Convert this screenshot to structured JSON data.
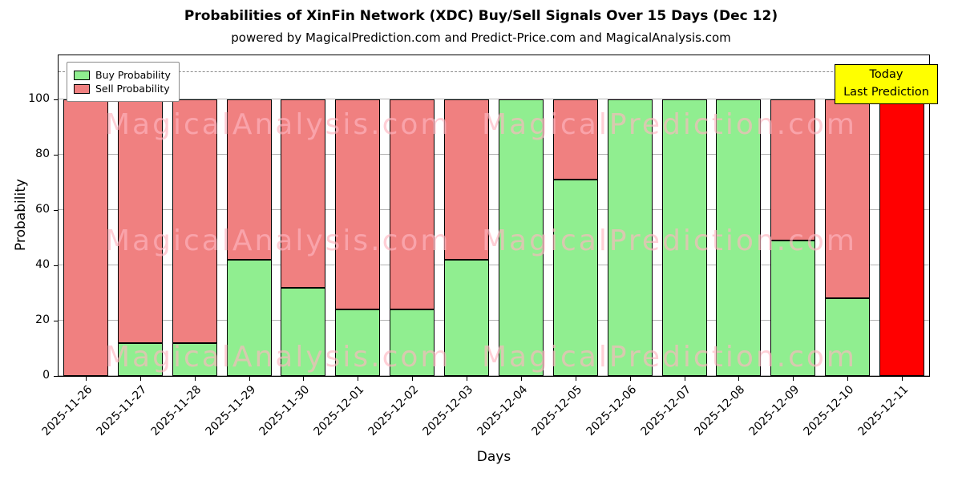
{
  "title": "Probabilities of XinFin Network (XDC) Buy/Sell Signals Over 15 Days (Dec 12)",
  "subtitle": "powered by MagicalPrediction.com and Predict-Price.com and MagicalAnalysis.com",
  "legend": {
    "buy_label": "Buy Probability",
    "sell_label": "Sell Probability"
  },
  "annotation": {
    "line1": "Today",
    "line2": "Last Prediction"
  },
  "watermarks": {
    "left": "MagicalAnalysis.com",
    "right": "MagicalPrediction.com"
  },
  "axes": {
    "xlabel": "Days",
    "ylabel": "Probability",
    "yticks": [
      0,
      20,
      40,
      60,
      80,
      100
    ],
    "ylim": [
      0,
      116
    ],
    "dashed_line_y": 110,
    "grid": true
  },
  "colors": {
    "buy": "#90ee90",
    "sell": "#f08080",
    "today": "#ff0000",
    "annotation_bg": "#ffff00",
    "watermark": "#ffb6c1"
  },
  "chart_data": {
    "type": "bar",
    "stacked": true,
    "title": "Probabilities of XinFin Network (XDC) Buy/Sell Signals Over 15 Days (Dec 12)",
    "xlabel": "Days",
    "ylabel": "Probability",
    "ylim": [
      0,
      116
    ],
    "categories": [
      "2025-11-26",
      "2025-11-27",
      "2025-11-28",
      "2025-11-29",
      "2025-11-30",
      "2025-12-01",
      "2025-12-02",
      "2025-12-03",
      "2025-12-04",
      "2025-12-05",
      "2025-12-06",
      "2025-12-07",
      "2025-12-08",
      "2025-12-09",
      "2025-12-10",
      "2025-12-11"
    ],
    "series": [
      {
        "name": "Buy Probability",
        "color": "#90ee90",
        "values": [
          0,
          12,
          12,
          42,
          32,
          24,
          24,
          42,
          100,
          71,
          100,
          100,
          100,
          49,
          28,
          0
        ]
      },
      {
        "name": "Sell Probability",
        "color": "#f08080",
        "values": [
          100,
          88,
          88,
          58,
          68,
          76,
          76,
          58,
          0,
          29,
          0,
          0,
          0,
          51,
          72,
          0
        ]
      },
      {
        "name": "Today / Last Prediction",
        "color": "#ff0000",
        "values": [
          0,
          0,
          0,
          0,
          0,
          0,
          0,
          0,
          0,
          0,
          0,
          0,
          0,
          0,
          0,
          100
        ]
      }
    ],
    "legend_position": "upper left"
  }
}
